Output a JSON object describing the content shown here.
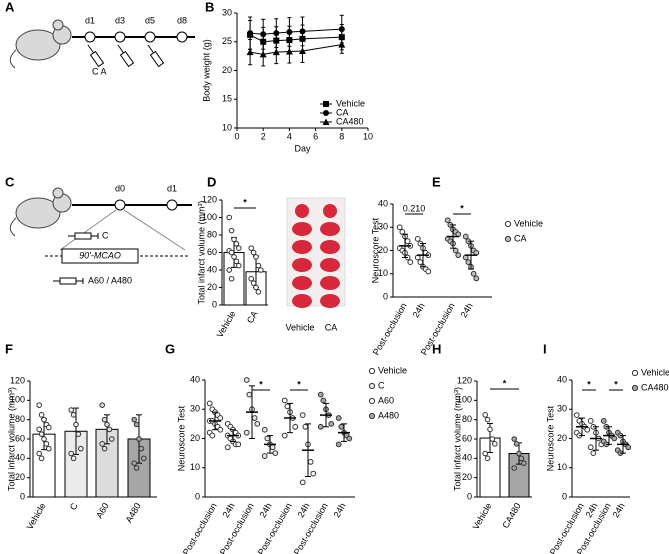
{
  "panel_labels": [
    "A",
    "B",
    "C",
    "D",
    "E",
    "F",
    "G",
    "H",
    "I"
  ],
  "schematic_a": {
    "days": [
      "d1",
      "d3",
      "d5",
      "d8"
    ],
    "treatment": "C A"
  },
  "schematic_c": {
    "days": [
      "d0",
      "d1"
    ],
    "pre": "C",
    "procedure": "90'-MCAO",
    "post": "A60 / A480"
  },
  "photo_d": {
    "labels": [
      "Vehicle",
      "CA"
    ]
  },
  "chart_data": [
    {
      "type": "line",
      "x_label": "Day",
      "y_label": "Body weight (g)",
      "x": [
        1,
        2,
        3,
        4,
        5,
        8
      ],
      "xlim": [
        0,
        10
      ],
      "xticks": [
        0,
        2,
        4,
        6,
        8,
        10
      ],
      "ylim": [
        10,
        30
      ],
      "yticks": [
        10,
        15,
        20,
        25,
        30
      ],
      "series": [
        {
          "name": "Vehicle",
          "marker": "square",
          "color": "#000000",
          "values": [
            26.2,
            25,
            25.2,
            25.3,
            25.5,
            25.8
          ],
          "errors": [
            2.5,
            2.5,
            2.4,
            2.4,
            2.4,
            2.2
          ]
        },
        {
          "name": "CA",
          "marker": "circle",
          "color": "#000000",
          "values": [
            26.5,
            26.3,
            26.5,
            26.7,
            26.8,
            27.2
          ],
          "errors": [
            2.8,
            2.6,
            2.5,
            2.5,
            2.5,
            2.4
          ]
        },
        {
          "name": "CA480",
          "marker": "triangle",
          "color": "#000000",
          "values": [
            23.2,
            22.8,
            23.2,
            23.3,
            23.4,
            24.5
          ],
          "errors": [
            2.2,
            2,
            2,
            2,
            2,
            1.5
          ]
        }
      ]
    },
    {
      "type": "bar",
      "y_label": "Total infarct volume (mm³)",
      "categories": [
        "Vehicle",
        "CA"
      ],
      "values": [
        60,
        38
      ],
      "errors": [
        17,
        18
      ],
      "colors": [
        "#ffffff",
        "#ffffff"
      ],
      "points": [
        [
          100,
          85,
          75,
          70,
          65,
          62,
          60,
          55,
          50,
          45,
          40,
          30
        ],
        [
          65,
          60,
          55,
          45,
          40,
          30,
          25,
          20,
          15
        ]
      ],
      "annotation": "*",
      "ylim": [
        0,
        120
      ],
      "yticks": [
        0,
        20,
        40,
        60,
        80,
        100,
        120
      ]
    },
    {
      "type": "dot",
      "y_label": "Neuroscore Test",
      "categories": [
        "Post-occlusion",
        "24h"
      ],
      "ylim": [
        0,
        40
      ],
      "yticks": [
        0,
        10,
        20,
        30,
        40
      ],
      "series": [
        {
          "name": "Vehicle",
          "color": "#ffffff",
          "values": [
            22,
            18
          ],
          "errors": [
            5,
            5
          ],
          "annotation": "0.210",
          "points": [
            [
              30,
              28,
              26,
              24,
              22,
              21,
              20,
              19,
              17,
              15
            ],
            [
              25,
              23,
              21,
              19,
              18,
              17,
              15,
              13,
              12,
              11
            ]
          ]
        },
        {
          "name": "CA",
          "color": "#bfbfbf",
          "values": [
            26,
            18
          ],
          "errors": [
            5,
            6
          ],
          "annotation": "*",
          "points": [
            [
              33,
              31,
              29,
              28,
              27,
              25,
              24,
              23,
              20,
              18
            ],
            [
              26,
              24,
              22,
              20,
              19,
              17,
              15,
              13,
              10,
              8
            ]
          ]
        }
      ]
    },
    {
      "type": "bar",
      "y_label": "Total infarct volume (mm³)",
      "categories": [
        "Vehicle",
        "C",
        "A60",
        "A480"
      ],
      "values": [
        65,
        68,
        70,
        60
      ],
      "errors": [
        16,
        24,
        15,
        25
      ],
      "colors": [
        "#ffffff",
        "#ebebeb",
        "#dcdcdc",
        "#a6a6a6"
      ],
      "points": [
        [
          95,
          85,
          80,
          75,
          72,
          70,
          65,
          60,
          55,
          50,
          45,
          40
        ],
        [
          90,
          85,
          75,
          65,
          50,
          45,
          40
        ],
        [
          95,
          80,
          75,
          70,
          60,
          55,
          50
        ],
        [
          80,
          75,
          60,
          50,
          40,
          35,
          30
        ]
      ],
      "ylim": [
        0,
        120
      ],
      "yticks": [
        0,
        20,
        40,
        60,
        80,
        100,
        120
      ]
    },
    {
      "type": "dot",
      "y_label": "Neuroscore  Test",
      "categories": [
        "Post-occlusion",
        "24h"
      ],
      "ylim": [
        0,
        40
      ],
      "yticks": [
        0,
        10,
        20,
        30,
        40
      ],
      "series": [
        {
          "name": "Vehicle",
          "color": "#ffffff",
          "values": [
            26,
            21
          ],
          "errors": [
            3,
            2
          ],
          "points": [
            [
              32,
              30,
              29,
              28,
              27,
              26,
              26,
              25,
              24,
              23,
              22,
              21
            ],
            [
              25,
              24,
              23,
              22,
              21,
              21,
              20,
              19,
              18,
              18,
              17
            ]
          ]
        },
        {
          "name": "C",
          "color": "#e6e6e6",
          "values": [
            29,
            18
          ],
          "errors": [
            9,
            3
          ],
          "annotation": "*",
          "points": [
            [
              40,
              35,
              30,
              27,
              25,
              22
            ],
            [
              23,
              20,
              18,
              17,
              15,
              14
            ]
          ]
        },
        {
          "name": "A60",
          "color": "#f7f7f7",
          "values": [
            27,
            16
          ],
          "errors": [
            5,
            9
          ],
          "annotation": "*",
          "points": [
            [
              33,
              31,
              29,
              27,
              24,
              21
            ],
            [
              28,
              24,
              18,
              12,
              8,
              5
            ]
          ]
        },
        {
          "name": "A480",
          "color": "#a6a6a6",
          "values": [
            28,
            22
          ],
          "errors": [
            4,
            3
          ],
          "points": [
            [
              35,
              33,
              30,
              28,
              25,
              24
            ],
            [
              27,
              24,
              22,
              21,
              20,
              18
            ]
          ]
        }
      ]
    },
    {
      "type": "bar",
      "y_label": "Total infarct volume (mm³)",
      "categories": [
        "Vehicle",
        "CA480"
      ],
      "values": [
        61,
        45
      ],
      "errors": [
        15,
        11
      ],
      "colors": [
        "#ffffff",
        "#a6a6a6"
      ],
      "points": [
        [
          85,
          80,
          70,
          60,
          55,
          45,
          40
        ],
        [
          60,
          55,
          45,
          40,
          35,
          30
        ]
      ],
      "annotation": "*",
      "ylim": [
        0,
        120
      ],
      "yticks": [
        0,
        20,
        40,
        60,
        80,
        100,
        120
      ]
    },
    {
      "type": "dot",
      "y_label": "Neuroscore Test",
      "categories": [
        "Post-occlusion",
        "24h"
      ],
      "ylim": [
        0,
        40
      ],
      "yticks": [
        0,
        10,
        20,
        30,
        40
      ],
      "series": [
        {
          "name": "Vehicle",
          "color": "#ffffff",
          "values": [
            24,
            20
          ],
          "errors": [
            3,
            4
          ],
          "annotation": "*",
          "points": [
            [
              28,
              26,
              25,
              24,
              23,
              22,
              21
            ],
            [
              26,
              24,
              22,
              20,
              18,
              17,
              15
            ]
          ]
        },
        {
          "name": "CA480",
          "color": "#a6a6a6",
          "values": [
            21,
            18
          ],
          "errors": [
            3,
            3
          ],
          "annotation": "*",
          "points": [
            [
              26,
              24,
              22,
              21,
              20,
              19,
              18
            ],
            [
              22,
              21,
              19,
              18,
              17,
              16,
              15
            ]
          ]
        }
      ]
    }
  ]
}
